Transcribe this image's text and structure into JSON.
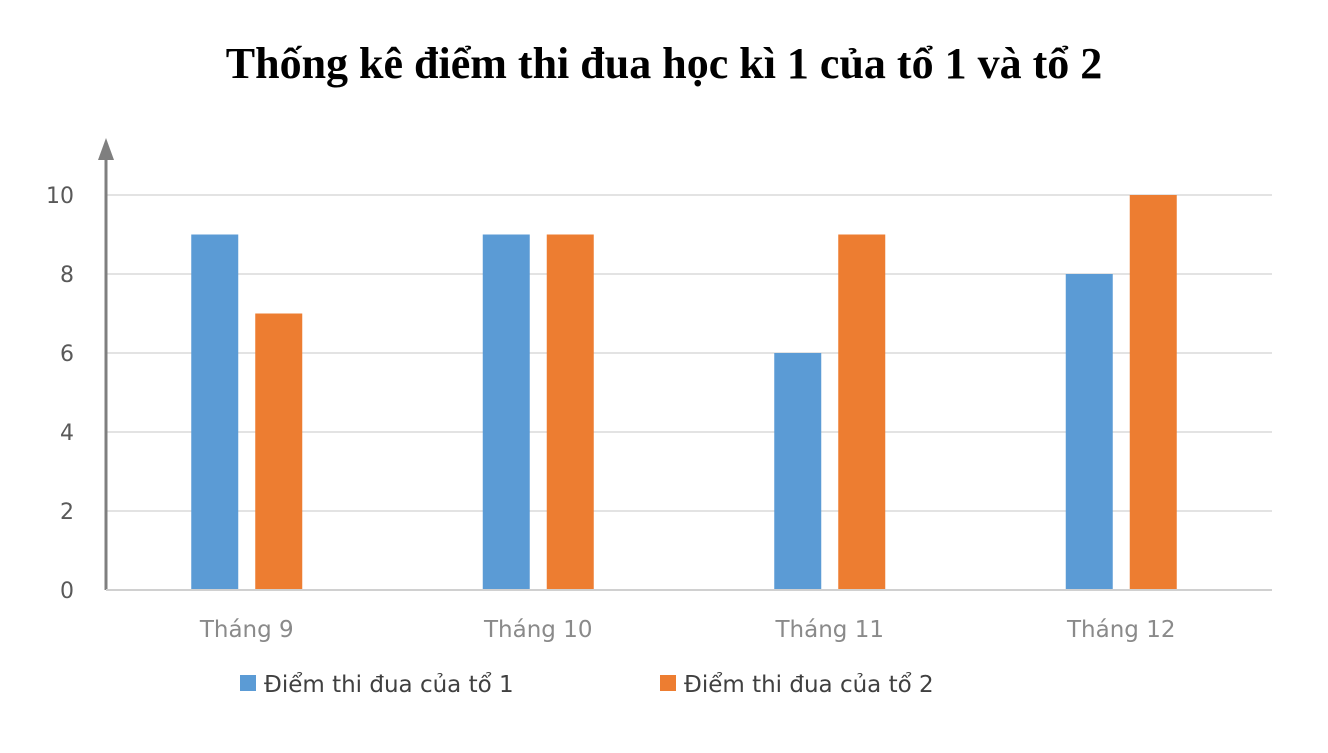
{
  "chart_data": {
    "type": "bar",
    "title": "Thống kê điểm thi đua học kì 1 của tổ 1 và tổ 2",
    "xlabel": "",
    "ylabel": "",
    "categories": [
      "Tháng 9",
      "Tháng 10",
      "Tháng 11",
      "Tháng 12"
    ],
    "series": [
      {
        "name": "Điểm thi đua của tổ 1",
        "values": [
          9,
          9,
          6,
          8
        ],
        "color": "#5b9bd5"
      },
      {
        "name": "Điểm thi đua của tổ 2",
        "values": [
          7,
          9,
          9,
          10
        ],
        "color": "#ed7d31"
      }
    ],
    "ylim": [
      0,
      10
    ],
    "yticks": [
      0,
      2,
      4,
      6,
      8,
      10
    ],
    "grid": true,
    "legend_position": "bottom"
  }
}
